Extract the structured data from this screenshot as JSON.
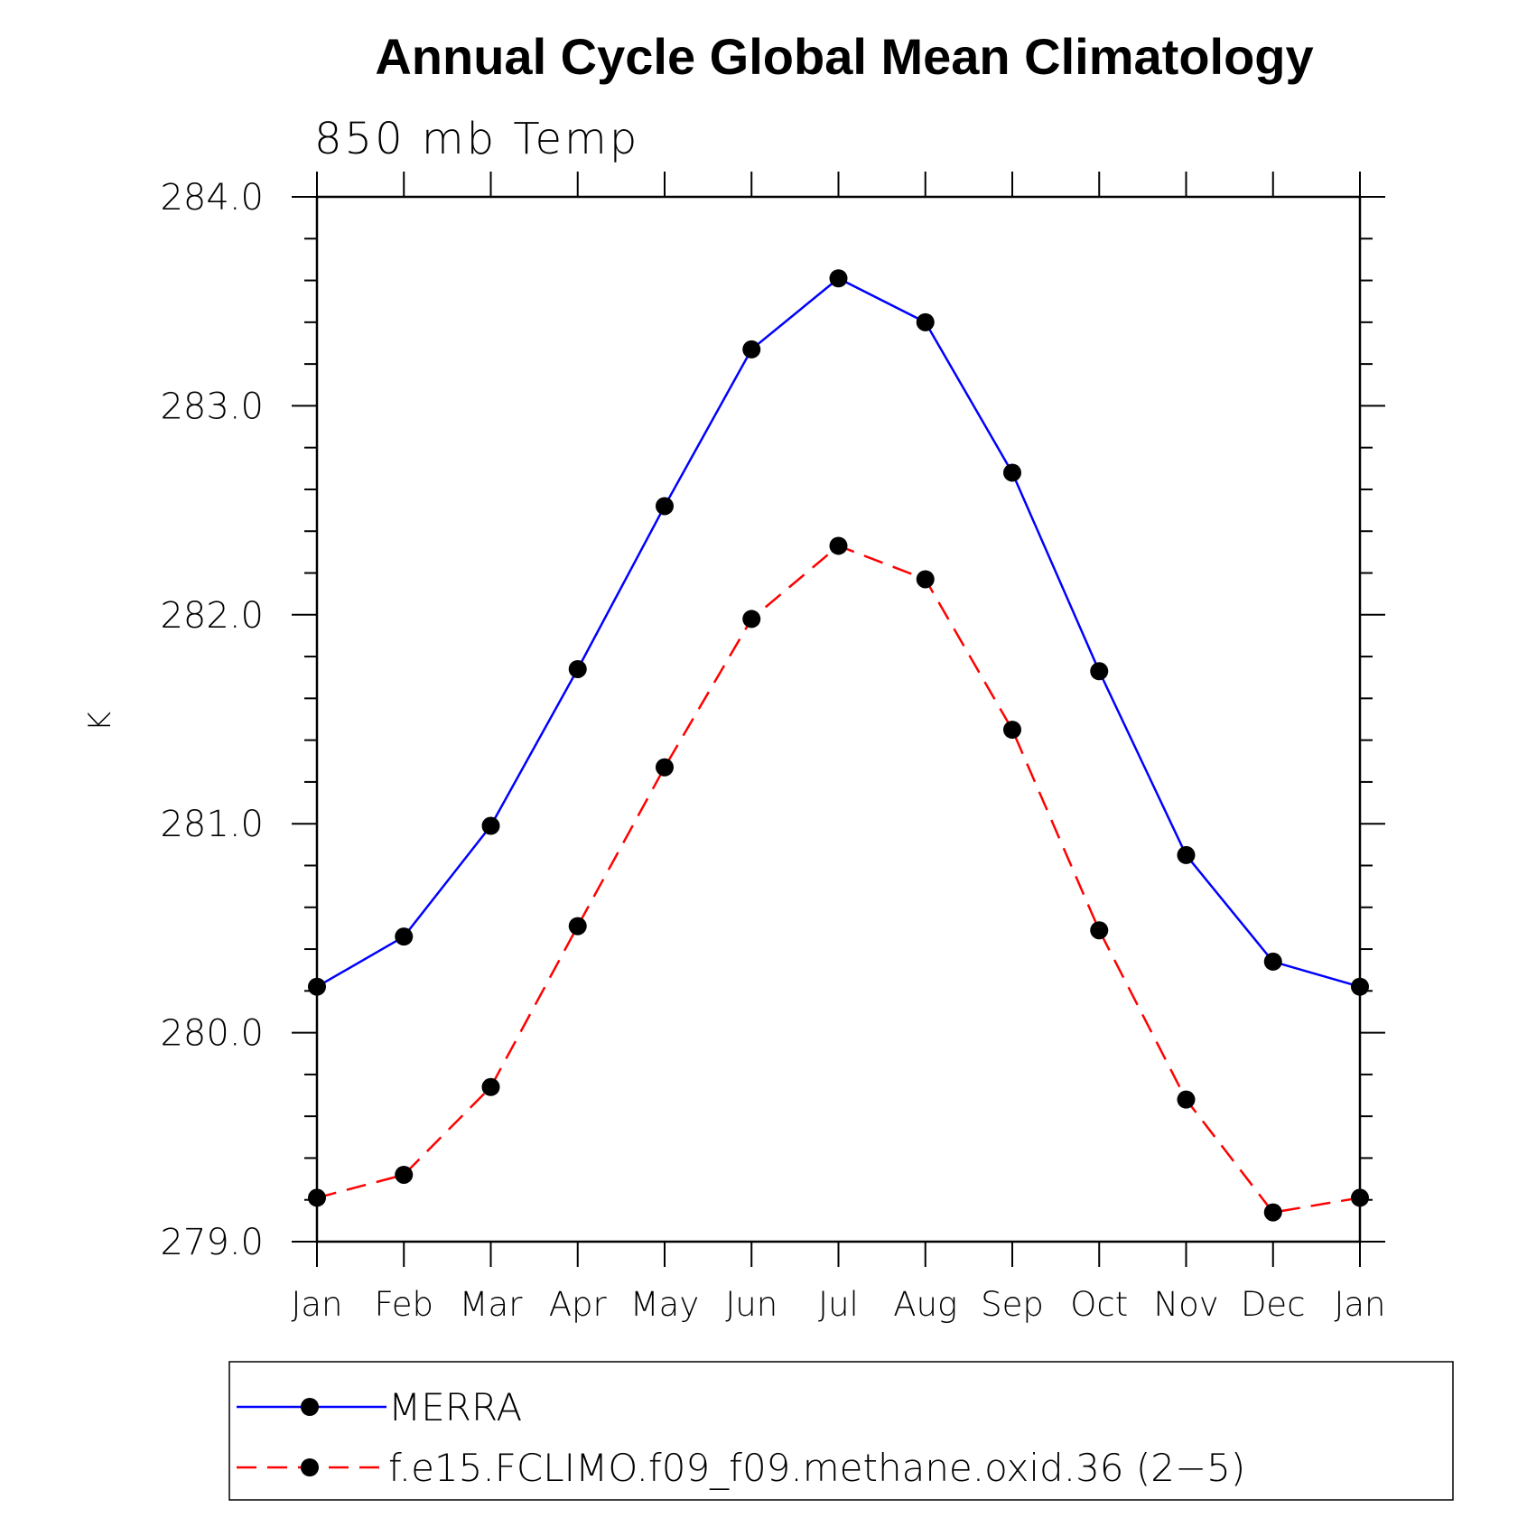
{
  "chart_data": {
    "type": "line",
    "title": "Annual Cycle Global Mean Climatology",
    "subtitle": "850 mb Temp",
    "xlabel": "",
    "ylabel": "K",
    "categories": [
      "Jan",
      "Feb",
      "Mar",
      "Apr",
      "May",
      "Jun",
      "Jul",
      "Aug",
      "Sep",
      "Oct",
      "Nov",
      "Dec",
      "Jan"
    ],
    "ylim": [
      279.0,
      284.0
    ],
    "yticks": [
      "279.0",
      "280.0",
      "281.0",
      "282.0",
      "283.0",
      "284.0"
    ],
    "series": [
      {
        "name": "MERRA",
        "color": "#0000ff",
        "style": "solid",
        "marker": "circle",
        "values": [
          280.22,
          280.46,
          280.99,
          281.74,
          282.52,
          283.27,
          283.61,
          283.4,
          282.68,
          281.73,
          280.85,
          280.34,
          280.22
        ]
      },
      {
        "name": "f.e15.FCLIMO.f09_f09.methane.oxid.36 (2−5)",
        "color": "#ff0000",
        "style": "dashed",
        "marker": "circle",
        "values": [
          279.21,
          279.32,
          279.74,
          280.51,
          281.27,
          281.98,
          282.33,
          282.17,
          281.45,
          280.49,
          279.68,
          279.14,
          279.21
        ]
      }
    ],
    "grid": false,
    "legend_position": "bottom"
  }
}
